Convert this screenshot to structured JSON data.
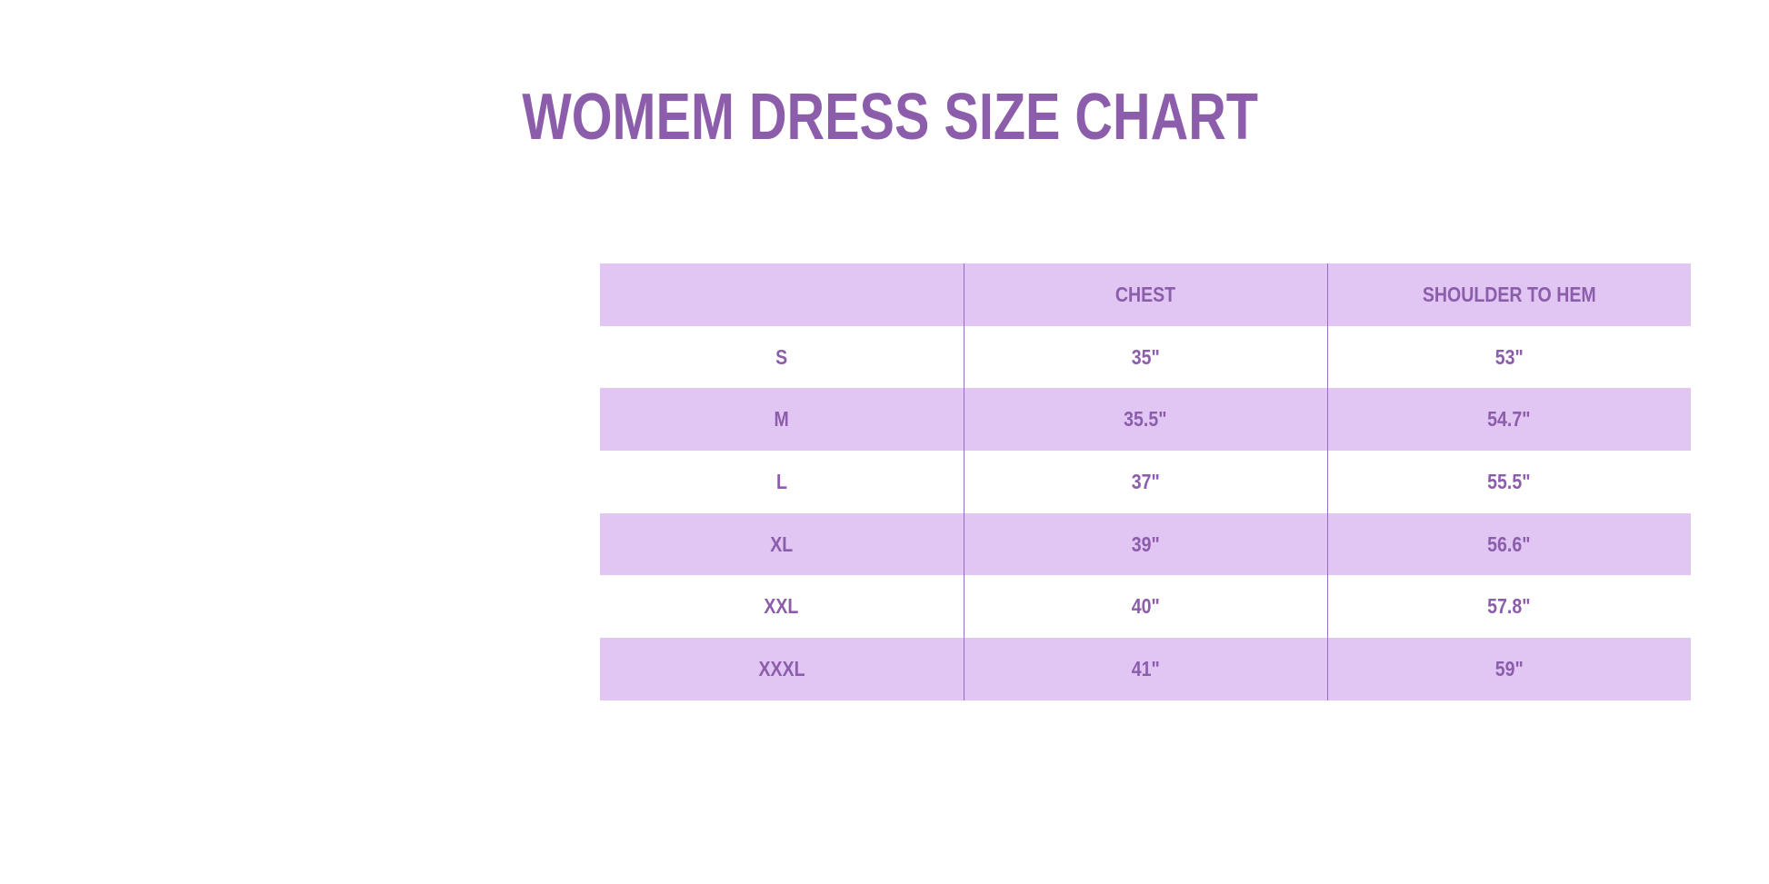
{
  "title": "WOMEM DRESS SIZE CHART",
  "colors": {
    "text": "#8c5dab",
    "shade": "#e1c6f4",
    "divider": "#9b6cc0"
  },
  "table": {
    "headers": [
      "",
      "CHEST",
      "SHOULDER TO HEM"
    ],
    "rows": [
      [
        "S",
        "35\"",
        "53\""
      ],
      [
        "M",
        "35.5\"",
        "54.7\""
      ],
      [
        "L",
        "37\"",
        "55.5\""
      ],
      [
        "XL",
        "39\"",
        "56.6\""
      ],
      [
        "XXL",
        "40\"",
        "57.8\""
      ],
      [
        "XXXL",
        "41\"",
        "59\""
      ]
    ]
  }
}
